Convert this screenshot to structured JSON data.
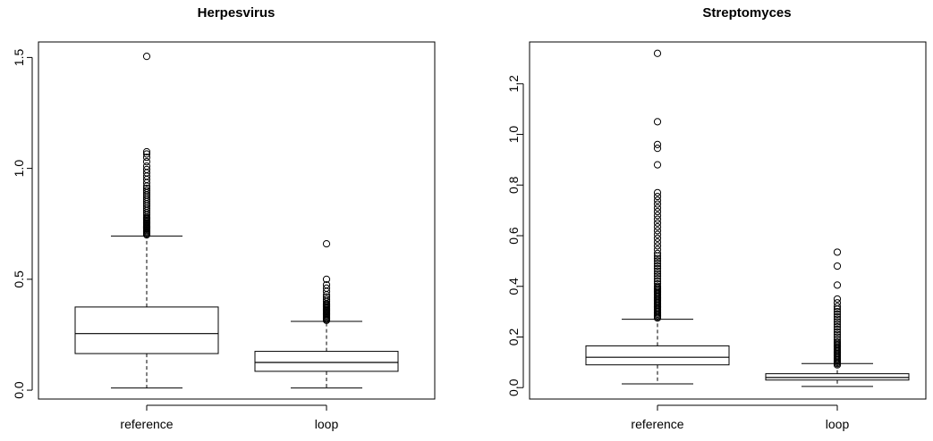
{
  "chart_data": [
    {
      "type": "box",
      "title": "Herpesvirus",
      "categories": [
        "reference",
        "loop"
      ],
      "y_ticks": [
        "0.0",
        "0.5",
        "1.0",
        "1.5"
      ],
      "ylim": [
        -0.04,
        1.57
      ],
      "boxes": [
        {
          "category": "reference",
          "whisker_low": 0.01,
          "q1": 0.165,
          "median": 0.255,
          "q3": 0.375,
          "whisker_high": 0.695,
          "outliers": [
            0.7,
            0.705,
            0.71,
            0.715,
            0.72,
            0.725,
            0.73,
            0.735,
            0.74,
            0.745,
            0.75,
            0.755,
            0.76,
            0.765,
            0.77,
            0.775,
            0.78,
            0.79,
            0.8,
            0.81,
            0.82,
            0.83,
            0.84,
            0.85,
            0.86,
            0.87,
            0.88,
            0.89,
            0.9,
            0.91,
            0.92,
            0.935,
            0.95,
            0.965,
            0.98,
            0.995,
            1.01,
            1.03,
            1.05,
            1.065,
            1.075,
            1.505
          ]
        },
        {
          "category": "loop",
          "whisker_low": 0.01,
          "q1": 0.085,
          "median": 0.125,
          "q3": 0.175,
          "whisker_high": 0.31,
          "outliers": [
            0.315,
            0.32,
            0.325,
            0.33,
            0.335,
            0.34,
            0.345,
            0.35,
            0.355,
            0.36,
            0.365,
            0.37,
            0.375,
            0.38,
            0.385,
            0.39,
            0.4,
            0.41,
            0.42,
            0.43,
            0.445,
            0.46,
            0.475,
            0.5,
            0.66
          ]
        }
      ]
    },
    {
      "type": "box",
      "title": "Streptomyces",
      "categories": [
        "reference",
        "loop"
      ],
      "y_ticks": [
        "0.0",
        "0.2",
        "0.4",
        "0.6",
        "0.8",
        "1.0",
        "1.2"
      ],
      "ylim": [
        -0.045,
        1.365
      ],
      "boxes": [
        {
          "category": "reference",
          "whisker_low": 0.015,
          "q1": 0.09,
          "median": 0.12,
          "q3": 0.165,
          "whisker_high": 0.27,
          "outliers": [
            0.275,
            0.28,
            0.285,
            0.29,
            0.295,
            0.3,
            0.305,
            0.31,
            0.315,
            0.32,
            0.325,
            0.33,
            0.335,
            0.34,
            0.345,
            0.35,
            0.355,
            0.36,
            0.365,
            0.37,
            0.375,
            0.38,
            0.385,
            0.39,
            0.395,
            0.4,
            0.41,
            0.42,
            0.43,
            0.44,
            0.45,
            0.46,
            0.47,
            0.48,
            0.49,
            0.5,
            0.51,
            0.52,
            0.53,
            0.545,
            0.56,
            0.575,
            0.59,
            0.605,
            0.62,
            0.635,
            0.65,
            0.665,
            0.68,
            0.695,
            0.71,
            0.725,
            0.74,
            0.755,
            0.77,
            0.88,
            0.945,
            0.96,
            1.05,
            1.32
          ]
        },
        {
          "category": "loop",
          "whisker_low": 0.005,
          "q1": 0.03,
          "median": 0.04,
          "q3": 0.055,
          "whisker_high": 0.095,
          "outliers": [
            0.09,
            0.095,
            0.1,
            0.105,
            0.11,
            0.115,
            0.12,
            0.125,
            0.13,
            0.135,
            0.14,
            0.145,
            0.15,
            0.155,
            0.16,
            0.165,
            0.17,
            0.175,
            0.18,
            0.19,
            0.2,
            0.21,
            0.22,
            0.23,
            0.24,
            0.25,
            0.26,
            0.27,
            0.28,
            0.29,
            0.3,
            0.31,
            0.32,
            0.335,
            0.35,
            0.405,
            0.48,
            0.535
          ]
        }
      ]
    }
  ]
}
